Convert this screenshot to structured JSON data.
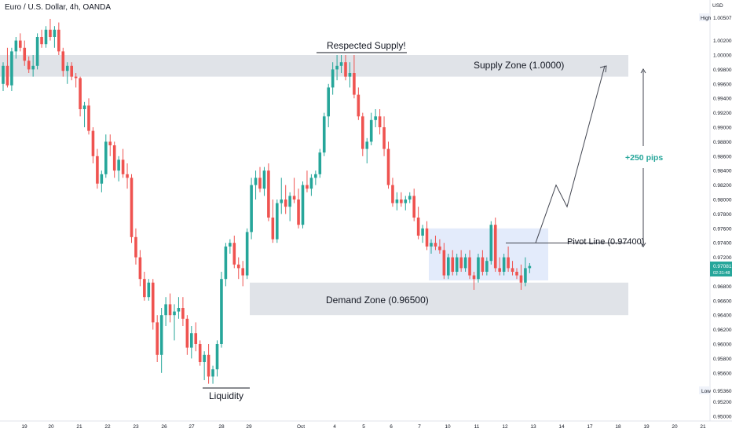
{
  "header": {
    "symbol_title": "Euro / U.S. Dollar, 4h, OANDA"
  },
  "colors": {
    "up": "#26a69a",
    "down": "#ef5350",
    "zone": "#d1d4dc",
    "box": "#dfe8fb",
    "text": "#131722",
    "price_tag": "#26a69a",
    "accent_text": "#26a69a",
    "line": "#434651"
  },
  "price_axis": {
    "currency": "USD",
    "high_label": "High",
    "high_value": "1.00507",
    "low_label": "Low",
    "low_value": "0.95360",
    "current_price": "0.97081",
    "countdown": "02:31:48"
  },
  "annotations": {
    "respected_supply": "Respected Supply!",
    "supply_zone": "Supply Zone (1.0000)",
    "demand_zone": "Demand Zone (0.96500)",
    "pivot_line": "Pivot Line (0.97400)",
    "liquidity": "Liquidity",
    "move_size": "+250 pips"
  },
  "chart_data": {
    "type": "candlestick",
    "title": "Euro / U.S. Dollar, 4h, OANDA",
    "xlabel": "",
    "ylabel": "",
    "ylim": [
      0.95,
      1.006
    ],
    "y_ticks": [
      "1.00200",
      "1.00000",
      "0.99800",
      "0.99600",
      "0.99400",
      "0.99200",
      "0.99000",
      "0.98800",
      "0.98600",
      "0.98400",
      "0.98200",
      "0.98000",
      "0.97800",
      "0.97600",
      "0.97400",
      "0.97200",
      "0.96800",
      "0.96600",
      "0.96400",
      "0.96200",
      "0.96000",
      "0.95800",
      "0.95600",
      "0.95200",
      "0.95000"
    ],
    "x_ticks": [
      "19",
      "20",
      "21",
      "22",
      "23",
      "26",
      "27",
      "28",
      "29",
      "Oct",
      "4",
      "5",
      "6",
      "7",
      "10",
      "11",
      "12",
      "13",
      "14",
      "17",
      "18",
      "19",
      "20",
      "21"
    ],
    "zones": [
      {
        "name": "Supply Zone (1.0000)",
        "low": 0.997,
        "high": 1.0
      },
      {
        "name": "Demand Zone (0.96500)",
        "low": 0.964,
        "high": 0.9685
      }
    ],
    "pivot": 0.974,
    "grid": false,
    "candles": [
      [
        0.996,
        0.999,
        0.995,
        0.9985
      ],
      [
        0.9985,
        1.001,
        0.9955,
        0.9958
      ],
      [
        0.9958,
        1.001,
        0.995,
        1.0005
      ],
      [
        1.0005,
        1.0025,
        0.9995,
        1.002
      ],
      [
        1.002,
        1.003,
        1.0005,
        1.001
      ],
      [
        1.001,
        1.002,
        0.9985,
        0.9992
      ],
      [
        0.9992,
        0.9998,
        0.9975,
        0.998
      ],
      [
        0.998,
        1.0,
        0.997,
        0.9985
      ],
      [
        0.9985,
        1.003,
        0.998,
        1.0025
      ],
      [
        1.0025,
        1.0035,
        1.001,
        1.0015
      ],
      [
        1.0015,
        1.004,
        1.001,
        1.0035
      ],
      [
        1.0035,
        1.005,
        1.002,
        1.0025
      ],
      [
        1.0025,
        1.004,
        1.001,
        1.0035
      ],
      [
        1.0035,
        1.0045,
        1.0,
        1.0005
      ],
      [
        1.0005,
        1.001,
        0.997,
        0.9978
      ],
      [
        0.9978,
        0.999,
        0.996,
        0.9985
      ],
      [
        0.9985,
        0.999,
        0.9965,
        0.997
      ],
      [
        0.997,
        0.9975,
        0.9955,
        0.9968
      ],
      [
        0.9968,
        0.997,
        0.9915,
        0.9925
      ],
      [
        0.9925,
        0.9935,
        0.99,
        0.993
      ],
      [
        0.993,
        0.994,
        0.989,
        0.9895
      ],
      [
        0.9895,
        0.99,
        0.985,
        0.986
      ],
      [
        0.986,
        0.987,
        0.9815,
        0.9822
      ],
      [
        0.9822,
        0.984,
        0.981,
        0.9835
      ],
      [
        0.9835,
        0.989,
        0.983,
        0.988
      ],
      [
        0.988,
        0.989,
        0.986,
        0.9875
      ],
      [
        0.9875,
        0.988,
        0.983,
        0.984
      ],
      [
        0.984,
        0.986,
        0.9825,
        0.9855
      ],
      [
        0.9855,
        0.987,
        0.983,
        0.9835
      ],
      [
        0.9835,
        0.985,
        0.9815,
        0.983
      ],
      [
        0.983,
        0.9835,
        0.974,
        0.9748
      ],
      [
        0.9748,
        0.976,
        0.971,
        0.972
      ],
      [
        0.972,
        0.973,
        0.968,
        0.969
      ],
      [
        0.969,
        0.97,
        0.966,
        0.9665
      ],
      [
        0.9665,
        0.969,
        0.966,
        0.9685
      ],
      [
        0.9685,
        0.969,
        0.962,
        0.963
      ],
      [
        0.963,
        0.964,
        0.9575,
        0.9585
      ],
      [
        0.9585,
        0.965,
        0.956,
        0.964
      ],
      [
        0.964,
        0.9665,
        0.9625,
        0.9655
      ],
      [
        0.9655,
        0.967,
        0.963,
        0.964
      ],
      [
        0.964,
        0.9655,
        0.9605,
        0.9645
      ],
      [
        0.9645,
        0.9665,
        0.9635,
        0.965
      ],
      [
        0.965,
        0.9665,
        0.9625,
        0.9635
      ],
      [
        0.9635,
        0.964,
        0.9585,
        0.9595
      ],
      [
        0.9595,
        0.9625,
        0.958,
        0.9615
      ],
      [
        0.9615,
        0.963,
        0.959,
        0.96
      ],
      [
        0.96,
        0.9605,
        0.957,
        0.9575
      ],
      [
        0.9575,
        0.959,
        0.955,
        0.9585
      ],
      [
        0.9585,
        0.96,
        0.9545,
        0.9555
      ],
      [
        0.9555,
        0.957,
        0.9545,
        0.9565
      ],
      [
        0.9565,
        0.9605,
        0.9555,
        0.96
      ],
      [
        0.96,
        0.97,
        0.9595,
        0.969
      ],
      [
        0.969,
        0.974,
        0.968,
        0.9735
      ],
      [
        0.9735,
        0.9745,
        0.9725,
        0.974
      ],
      [
        0.974,
        0.975,
        0.9705,
        0.971
      ],
      [
        0.971,
        0.972,
        0.969,
        0.9705
      ],
      [
        0.9705,
        0.9715,
        0.968,
        0.9695
      ],
      [
        0.9695,
        0.976,
        0.969,
        0.9755
      ],
      [
        0.9755,
        0.983,
        0.9745,
        0.982
      ],
      [
        0.982,
        0.984,
        0.98,
        0.983
      ],
      [
        0.983,
        0.9845,
        0.981,
        0.9815
      ],
      [
        0.9815,
        0.9845,
        0.9805,
        0.984
      ],
      [
        0.984,
        0.985,
        0.977,
        0.9775
      ],
      [
        0.9775,
        0.98,
        0.974,
        0.9745
      ],
      [
        0.9745,
        0.98,
        0.974,
        0.9795
      ],
      [
        0.9795,
        0.983,
        0.978,
        0.98
      ],
      [
        0.98,
        0.982,
        0.978,
        0.979
      ],
      [
        0.979,
        0.981,
        0.977,
        0.9805
      ],
      [
        0.9805,
        0.983,
        0.9795,
        0.98
      ],
      [
        0.98,
        0.9815,
        0.976,
        0.9765
      ],
      [
        0.9765,
        0.9825,
        0.976,
        0.982
      ],
      [
        0.982,
        0.984,
        0.981,
        0.9815
      ],
      [
        0.9815,
        0.9835,
        0.9805,
        0.983
      ],
      [
        0.983,
        0.984,
        0.982,
        0.9835
      ],
      [
        0.9835,
        0.987,
        0.983,
        0.9865
      ],
      [
        0.9865,
        0.992,
        0.986,
        0.9915
      ],
      [
        0.9915,
        0.996,
        0.99,
        0.9955
      ],
      [
        0.9955,
        0.999,
        0.9945,
        0.998
      ],
      [
        0.998,
        1.0,
        0.9965,
        0.9985
      ],
      [
        0.9985,
        1.0,
        0.9975,
        0.999
      ],
      [
        0.999,
        1.0,
        0.9965,
        0.997
      ],
      [
        0.997,
        0.999,
        0.9955,
        0.9975
      ],
      [
        0.9975,
        1.0,
        0.994,
        0.9945
      ],
      [
        0.9945,
        0.9955,
        0.991,
        0.9915
      ],
      [
        0.9915,
        0.992,
        0.986,
        0.987
      ],
      [
        0.987,
        0.9885,
        0.985,
        0.988
      ],
      [
        0.988,
        0.992,
        0.9875,
        0.991
      ],
      [
        0.991,
        0.9925,
        0.99,
        0.9915
      ],
      [
        0.9915,
        0.9925,
        0.989,
        0.99
      ],
      [
        0.99,
        0.9915,
        0.986,
        0.987
      ],
      [
        0.987,
        0.988,
        0.9815,
        0.982
      ],
      [
        0.982,
        0.983,
        0.979,
        0.9795
      ],
      [
        0.9795,
        0.981,
        0.9785,
        0.98
      ],
      [
        0.98,
        0.981,
        0.979,
        0.9795
      ],
      [
        0.9795,
        0.9805,
        0.9785,
        0.98
      ],
      [
        0.98,
        0.981,
        0.9795,
        0.9805
      ],
      [
        0.9805,
        0.9815,
        0.977,
        0.9775
      ],
      [
        0.9775,
        0.979,
        0.9745,
        0.975
      ],
      [
        0.975,
        0.9765,
        0.974,
        0.976
      ],
      [
        0.976,
        0.977,
        0.973,
        0.9735
      ],
      [
        0.9735,
        0.9745,
        0.9725,
        0.974
      ],
      [
        0.974,
        0.975,
        0.973,
        0.9735
      ],
      [
        0.9735,
        0.9745,
        0.9725,
        0.973
      ],
      [
        0.973,
        0.974,
        0.969,
        0.9695
      ],
      [
        0.9695,
        0.9725,
        0.969,
        0.972
      ],
      [
        0.972,
        0.973,
        0.9695,
        0.97
      ],
      [
        0.97,
        0.9725,
        0.9695,
        0.972
      ],
      [
        0.972,
        0.973,
        0.97,
        0.9705
      ],
      [
        0.9705,
        0.9725,
        0.97,
        0.972
      ],
      [
        0.972,
        0.973,
        0.969,
        0.9695
      ],
      [
        0.9695,
        0.97,
        0.9675,
        0.969
      ],
      [
        0.969,
        0.9725,
        0.9685,
        0.972
      ],
      [
        0.972,
        0.973,
        0.9695,
        0.97
      ],
      [
        0.97,
        0.972,
        0.9695,
        0.9715
      ],
      [
        0.9715,
        0.977,
        0.971,
        0.9765
      ],
      [
        0.9765,
        0.9775,
        0.97,
        0.9705
      ],
      [
        0.9705,
        0.972,
        0.9695,
        0.97
      ],
      [
        0.97,
        0.9725,
        0.9695,
        0.972
      ],
      [
        0.972,
        0.9735,
        0.97,
        0.9705
      ],
      [
        0.9705,
        0.9715,
        0.9695,
        0.97
      ],
      [
        0.97,
        0.9705,
        0.969,
        0.9695
      ],
      [
        0.9695,
        0.971,
        0.9675,
        0.9685
      ],
      [
        0.9685,
        0.972,
        0.968,
        0.9705
      ],
      [
        0.9705,
        0.9712,
        0.9698,
        0.9708
      ]
    ],
    "projection": [
      [
        0.974,
        0.974
      ],
      [
        0.982,
        0.982
      ],
      [
        0.979,
        0.979
      ],
      [
        0.9985,
        0.9985
      ]
    ]
  }
}
